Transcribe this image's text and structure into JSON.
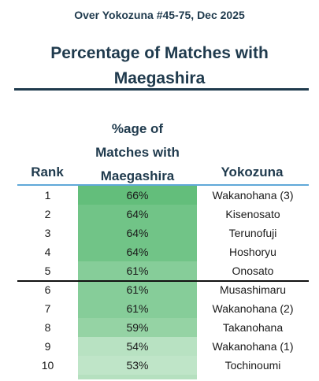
{
  "subtitle": "Over Yokozuna #45-75, Dec 2025",
  "title_line1": "Percentage of Matches with",
  "title_line2": "Maegashira",
  "headers": {
    "rank": "Rank",
    "pct_line1": "%age of",
    "pct_line2": "Matches with",
    "pct_line3": "Maegashira",
    "yokozuna": "Yokozuna"
  },
  "rows": [
    {
      "rank": "1",
      "pct": "66%",
      "yokozuna": "Wakanohana (3)",
      "value": 66
    },
    {
      "rank": "2",
      "pct": "64%",
      "yokozuna": "Kisenosato",
      "value": 64
    },
    {
      "rank": "3",
      "pct": "64%",
      "yokozuna": "Terunofuji",
      "value": 64
    },
    {
      "rank": "4",
      "pct": "64%",
      "yokozuna": "Hoshoryu",
      "value": 64
    },
    {
      "rank": "5",
      "pct": "61%",
      "yokozuna": "Onosato",
      "value": 61
    },
    {
      "rank": "6",
      "pct": "61%",
      "yokozuna": "Musashimaru",
      "value": 61
    },
    {
      "rank": "7",
      "pct": "61%",
      "yokozuna": "Wakanohana (2)",
      "value": 61
    },
    {
      "rank": "8",
      "pct": "59%",
      "yokozuna": "Takanohana",
      "value": 59
    },
    {
      "rank": "9",
      "pct": "54%",
      "yokozuna": "Wakanohana (1)",
      "value": 54
    },
    {
      "rank": "10",
      "pct": "53%",
      "yokozuna": "Tochinoumi",
      "value": 53
    }
  ],
  "colors": {
    "heat_high": "#63be7b",
    "heat_low": "#bfe5c8",
    "header_rule": "#5fa8d8",
    "title_color": "#1f3a4d"
  }
}
